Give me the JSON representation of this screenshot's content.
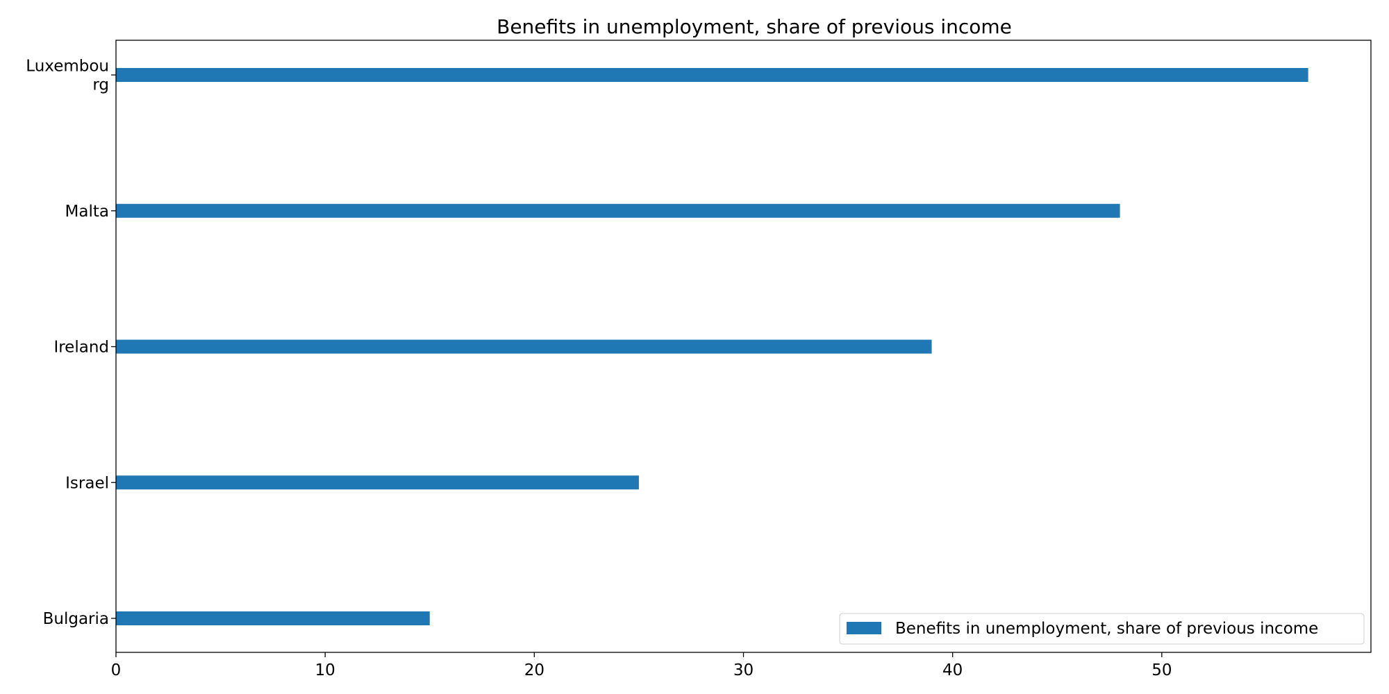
{
  "chart_data": {
    "type": "bar",
    "orientation": "horizontal",
    "title": "Benefits in unemployment, share of previous income",
    "xlabel": "",
    "ylabel": "",
    "categories": [
      "Luxembourg",
      "Malta",
      "Ireland",
      "Israel",
      "Bulgaria"
    ],
    "category_tick_labels": [
      [
        "Luxembou",
        "rg"
      ],
      [
        "Malta"
      ],
      [
        "Ireland"
      ],
      [
        "Israel"
      ],
      [
        "Bulgaria"
      ]
    ],
    "series": [
      {
        "name": "Benefits in unemployment, share of previous income",
        "values": [
          57,
          48,
          39,
          25,
          15
        ],
        "color": "#1f77b4"
      }
    ],
    "xlim": [
      0,
      60
    ],
    "xticks": [
      0,
      10,
      20,
      30,
      40,
      50
    ],
    "grid": false,
    "legend_position": "lower-right"
  }
}
